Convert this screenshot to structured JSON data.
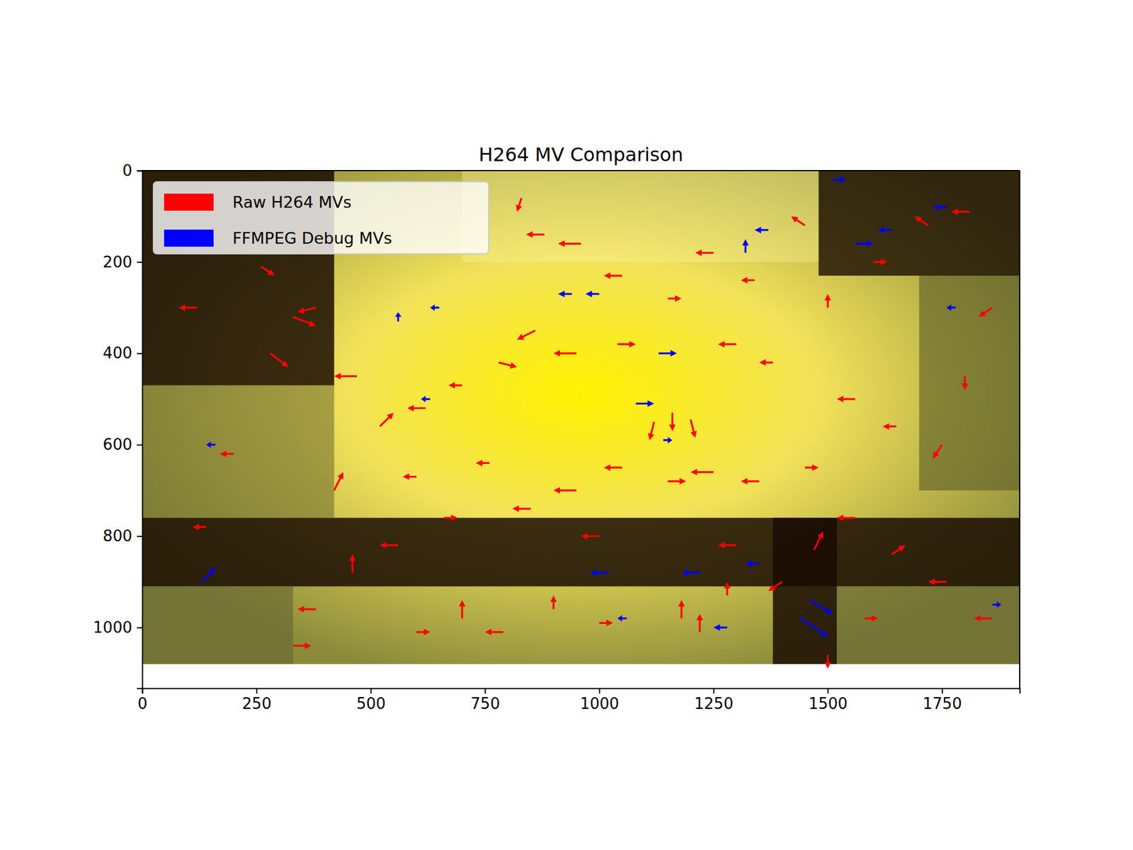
{
  "chart_data": {
    "type": "quiver",
    "title": "H264 MV Comparison",
    "xlim": [
      0,
      1920
    ],
    "ylim": [
      1133,
      0
    ],
    "xticks": [
      0,
      250,
      500,
      750,
      1000,
      1250,
      1500,
      1750
    ],
    "yticks": [
      0,
      200,
      400,
      600,
      800,
      1000
    ],
    "legend": "upper left",
    "series": [
      {
        "name": "Raw H264 MVs",
        "color": "#ff0000",
        "x": [
          120,
          260,
          330,
          280,
          380,
          470,
          520,
          620,
          700,
          780,
          830,
          880,
          960,
          1050,
          1150,
          1250,
          1340,
          1450,
          1500,
          1600,
          1720,
          1810,
          1860,
          1800,
          1750,
          1650,
          1560,
          1450,
          1350,
          1250,
          1150,
          1050,
          950,
          850,
          760,
          660,
          560,
          460,
          380,
          330,
          600,
          700,
          790,
          900,
          1000,
          1180,
          1220,
          1280,
          1400,
          1470,
          1560,
          1640,
          1760,
          1860,
          1500,
          1120,
          1160,
          1200,
          860,
          950,
          1040,
          1300,
          1380,
          200,
          140,
          420,
          600,
          1000,
          1300,
          1580
        ],
        "y": [
          300,
          210,
          320,
          400,
          300,
          450,
          560,
          520,
          470,
          420,
          60,
          140,
          160,
          230,
          280,
          180,
          240,
          120,
          300,
          200,
          120,
          90,
          300,
          450,
          600,
          560,
          500,
          650,
          680,
          660,
          680,
          650,
          700,
          740,
          640,
          760,
          820,
          880,
          960,
          1040,
          1010,
          980,
          1010,
          960,
          990,
          980,
          1010,
          930,
          900,
          830,
          760,
          840,
          900,
          980,
          1060,
          550,
          530,
          545,
          350,
          400,
          380,
          380,
          420,
          620,
          780,
          700,
          670,
          800,
          820,
          980
        ],
        "u": [
          -40,
          30,
          50,
          40,
          -40,
          -50,
          30,
          -40,
          -30,
          40,
          -10,
          -40,
          -50,
          -40,
          30,
          -40,
          -30,
          -30,
          0,
          30,
          -30,
          -40,
          -30,
          0,
          -20,
          -30,
          -40,
          30,
          -40,
          -50,
          40,
          -40,
          -50,
          -40,
          -30,
          30,
          -40,
          0,
          -40,
          40,
          30,
          0,
          -40,
          0,
          30,
          0,
          0,
          0,
          -30,
          20,
          -40,
          30,
          -40,
          -40,
          0,
          -10,
          0,
          10,
          -40,
          -50,
          40,
          -40,
          -30,
          -30,
          -30,
          20,
          -30,
          -40,
          -40,
          30
        ],
        "v": [
          0,
          20,
          20,
          30,
          10,
          0,
          -30,
          0,
          0,
          10,
          30,
          0,
          0,
          0,
          0,
          0,
          0,
          -20,
          -30,
          0,
          -20,
          0,
          20,
          30,
          30,
          0,
          0,
          0,
          0,
          0,
          0,
          0,
          0,
          0,
          0,
          0,
          0,
          -40,
          0,
          0,
          0,
          -40,
          0,
          -30,
          0,
          -40,
          -40,
          -30,
          20,
          -40,
          0,
          -20,
          0,
          0,
          30,
          40,
          40,
          40,
          20,
          0,
          0,
          0,
          0,
          0,
          0,
          -40,
          0,
          0,
          0,
          0
        ]
      },
      {
        "name": "FFMPEG Debug MVs",
        "color": "#0000ff",
        "x": [
          560,
          650,
          1000,
          1130,
          1370,
          1320,
          1510,
          1560,
          1640,
          1760,
          1780,
          1080,
          1140,
          630,
          130,
          160,
          1020,
          1220,
          1350,
          1440,
          1460,
          1280,
          1060,
          940,
          1860
        ],
        "y": [
          330,
          300,
          270,
          400,
          130,
          180,
          20,
          160,
          130,
          80,
          300,
          510,
          590,
          500,
          900,
          600,
          880,
          880,
          860,
          980,
          940,
          1000,
          980,
          270,
          950
        ],
        "u": [
          0,
          -20,
          -30,
          40,
          -30,
          0,
          30,
          40,
          -30,
          -30,
          -20,
          40,
          20,
          -20,
          30,
          -20,
          -40,
          -40,
          -30,
          60,
          50,
          -30,
          -20,
          -30,
          20
        ],
        "v": [
          -20,
          0,
          0,
          0,
          0,
          -30,
          0,
          0,
          0,
          0,
          0,
          0,
          0,
          0,
          -30,
          0,
          0,
          0,
          0,
          40,
          30,
          0,
          0,
          0,
          0
        ]
      }
    ]
  }
}
